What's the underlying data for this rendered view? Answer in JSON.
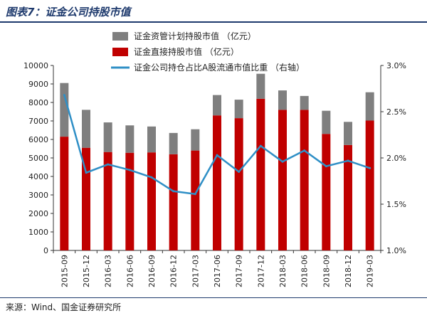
{
  "title": "图表7：证金公司持股市值",
  "source": "来源：Wind、国金证券研究所",
  "colors": {
    "title": "#1e3a6d",
    "indirect": "#7f7f7f",
    "direct": "#c00000",
    "line": "#2f8fc6",
    "axis": "#333333"
  },
  "chart_data": {
    "type": "bar",
    "categories": [
      "2015-09",
      "2015-12",
      "2016-03",
      "2016-06",
      "2016-09",
      "2016-12",
      "2017-03",
      "2017-06",
      "2017-09",
      "2017-12",
      "2018-03",
      "2018-06",
      "2018-09",
      "2018-12",
      "2019-03"
    ],
    "series": [
      {
        "name": "证金资管计划持股市值 （亿元）",
        "kind": "stacked-bar",
        "values": [
          2900,
          2050,
          1600,
          1480,
          1400,
          1150,
          1150,
          1100,
          1000,
          1350,
          1050,
          750,
          1250,
          1250,
          1530
        ]
      },
      {
        "name": "证金直接持股市值 （亿元）",
        "kind": "stacked-bar",
        "values": [
          6150,
          5550,
          5320,
          5280,
          5300,
          5200,
          5400,
          7300,
          7150,
          8200,
          7600,
          7600,
          6300,
          5700,
          7020
        ]
      },
      {
        "name": "证金公司持仓占比A股流通市值比重 （右轴）",
        "kind": "line",
        "axis": "right",
        "values": [
          2.68,
          1.84,
          1.93,
          1.87,
          1.79,
          1.64,
          1.61,
          2.03,
          1.85,
          2.13,
          1.96,
          2.08,
          1.91,
          1.97,
          1.89
        ]
      }
    ],
    "y_left": {
      "min": 0,
      "max": 10000,
      "ticks": [
        0,
        1000,
        2000,
        3000,
        4000,
        5000,
        6000,
        7000,
        8000,
        9000,
        10000
      ]
    },
    "y_right": {
      "min": 1.0,
      "max": 3.0,
      "ticks": [
        "1.0%",
        "1.5%",
        "2.0%",
        "2.5%",
        "3.0%"
      ]
    },
    "grid": false,
    "legend_position": "top-left"
  }
}
